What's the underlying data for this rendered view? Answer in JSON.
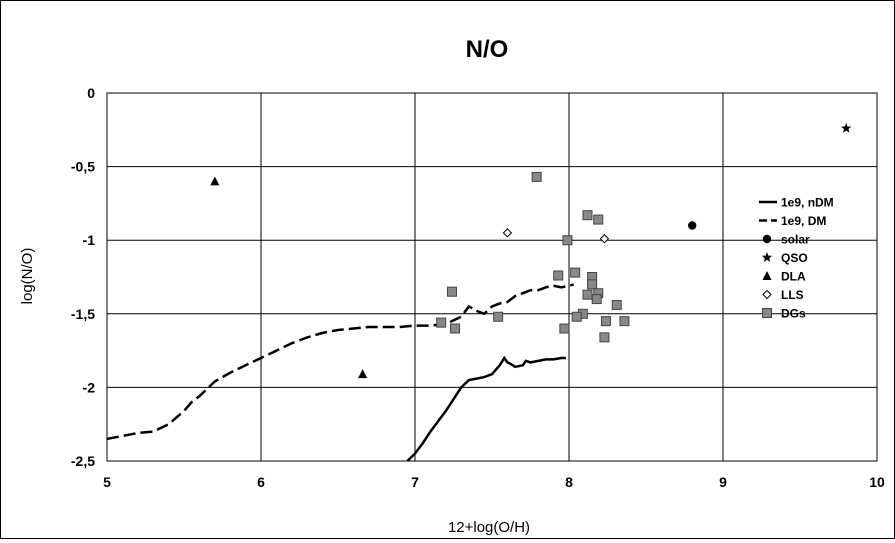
{
  "chart_data": {
    "type": "scatter",
    "title": "N/O",
    "xlabel": "12+log(O/H)",
    "ylabel": "log(N/O)",
    "xlim": [
      5,
      10
    ],
    "ylim": [
      -2.5,
      0
    ],
    "grid": true,
    "legend_position": "right",
    "x_ticks": [
      5,
      6,
      7,
      8,
      9,
      10
    ],
    "x_tick_labels": [
      "5",
      "6",
      "7",
      "8",
      "9",
      "10"
    ],
    "y_ticks": [
      0,
      -0.5,
      -1,
      -1.5,
      -2,
      -2.5
    ],
    "y_tick_labels": [
      "0",
      "-0,5",
      "-1",
      "-1,5",
      "-2",
      "-2,5"
    ],
    "series": [
      {
        "name": "1e9, nDM",
        "kind": "line",
        "style": "solid",
        "color": "#000000",
        "x": [
          6.95,
          7.0,
          7.05,
          7.1,
          7.15,
          7.2,
          7.25,
          7.3,
          7.35,
          7.4,
          7.45,
          7.5,
          7.55,
          7.58,
          7.6,
          7.62,
          7.65,
          7.7,
          7.72,
          7.75,
          7.8,
          7.85,
          7.9,
          7.95,
          7.98
        ],
        "y": [
          -2.5,
          -2.45,
          -2.38,
          -2.3,
          -2.23,
          -2.16,
          -2.08,
          -2.0,
          -1.95,
          -1.94,
          -1.93,
          -1.91,
          -1.85,
          -1.8,
          -1.83,
          -1.84,
          -1.86,
          -1.85,
          -1.82,
          -1.83,
          -1.82,
          -1.81,
          -1.81,
          -1.8,
          -1.8
        ]
      },
      {
        "name": "1e9, DM",
        "kind": "line",
        "style": "dashed",
        "color": "#000000",
        "x": [
          5.0,
          5.1,
          5.2,
          5.3,
          5.4,
          5.5,
          5.55,
          5.6,
          5.65,
          5.7,
          5.75,
          5.8,
          5.9,
          6.0,
          6.1,
          6.2,
          6.3,
          6.4,
          6.5,
          6.6,
          6.7,
          6.8,
          6.9,
          7.0,
          7.1,
          7.2,
          7.3,
          7.35,
          7.4,
          7.45,
          7.5,
          7.55,
          7.6,
          7.65,
          7.7,
          7.75,
          7.8,
          7.85,
          7.9,
          7.95,
          8.0,
          8.03
        ],
        "y": [
          -2.35,
          -2.33,
          -2.31,
          -2.3,
          -2.25,
          -2.16,
          -2.1,
          -2.06,
          -2.01,
          -1.96,
          -1.93,
          -1.9,
          -1.85,
          -1.8,
          -1.75,
          -1.7,
          -1.66,
          -1.63,
          -1.61,
          -1.6,
          -1.59,
          -1.59,
          -1.59,
          -1.58,
          -1.58,
          -1.57,
          -1.52,
          -1.45,
          -1.48,
          -1.5,
          -1.45,
          -1.43,
          -1.42,
          -1.38,
          -1.36,
          -1.34,
          -1.34,
          -1.32,
          -1.31,
          -1.32,
          -1.31,
          -1.3
        ]
      },
      {
        "name": "solar",
        "kind": "scatter",
        "marker": "circle",
        "color": "#000000",
        "x": [
          8.8
        ],
        "y": [
          -0.9
        ]
      },
      {
        "name": "QSO",
        "kind": "scatter",
        "marker": "star",
        "color": "#000000",
        "x": [
          9.8
        ],
        "y": [
          -0.24
        ]
      },
      {
        "name": "DLA",
        "kind": "scatter",
        "marker": "triangle",
        "color": "#000000",
        "x": [
          5.7,
          6.66
        ],
        "y": [
          -0.6,
          -1.91
        ]
      },
      {
        "name": "LLS",
        "kind": "scatter",
        "marker": "diamond",
        "color": "#000000",
        "x": [
          7.6,
          8.23
        ],
        "y": [
          -0.95,
          -0.99
        ]
      },
      {
        "name": "DGs",
        "kind": "scatter",
        "marker": "square",
        "color": "#888888",
        "x": [
          7.79,
          8.12,
          8.19,
          7.99,
          7.93,
          8.04,
          8.15,
          8.15,
          8.12,
          8.19,
          8.18,
          8.31,
          8.09,
          8.05,
          8.24,
          8.36,
          7.97,
          8.23,
          7.24,
          7.17,
          7.26,
          7.54
        ],
        "y": [
          -0.57,
          -0.83,
          -0.86,
          -1.0,
          -1.24,
          -1.22,
          -1.25,
          -1.3,
          -1.37,
          -1.36,
          -1.4,
          -1.44,
          -1.5,
          -1.52,
          -1.55,
          -1.55,
          -1.6,
          -1.66,
          -1.35,
          -1.56,
          -1.6,
          -1.52
        ]
      }
    ]
  }
}
